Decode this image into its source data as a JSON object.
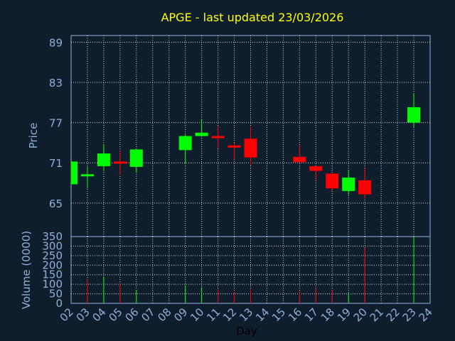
{
  "chart_data": {
    "type": "candlestick",
    "title": "APGE - last updated 23/03/2026",
    "xlabel": "Day",
    "x_ticks": [
      "02",
      "03",
      "04",
      "05",
      "06",
      "07",
      "08",
      "09",
      "10",
      "11",
      "12",
      "13",
      "14",
      "15",
      "16",
      "17",
      "18",
      "19",
      "20",
      "21",
      "22",
      "23",
      "24"
    ],
    "price_panel": {
      "ylabel": "Price",
      "ylim": [
        60,
        90
      ],
      "y_ticks": [
        65,
        71,
        77,
        83,
        89
      ],
      "grid": true,
      "candles": [
        {
          "x": "02",
          "open": 67.8,
          "high": 71.2,
          "low": 67.8,
          "close": 71.2
        },
        {
          "x": "03",
          "open": 69.0,
          "high": 70.4,
          "low": 67.2,
          "close": 69.3
        },
        {
          "x": "04",
          "open": 70.5,
          "high": 73.8,
          "low": 69.8,
          "close": 72.4
        },
        {
          "x": "05",
          "open": 71.2,
          "high": 72.8,
          "low": 69.2,
          "close": 71.0
        },
        {
          "x": "06",
          "open": 70.4,
          "high": 73.0,
          "low": 69.5,
          "close": 73.0
        },
        {
          "x": "09",
          "open": 72.9,
          "high": 75.2,
          "low": 70.9,
          "close": 75.0
        },
        {
          "x": "10",
          "open": 75.0,
          "high": 77.6,
          "low": 74.9,
          "close": 75.5
        },
        {
          "x": "11",
          "open": 75.0,
          "high": 76.5,
          "low": 73.2,
          "close": 74.8
        },
        {
          "x": "12",
          "open": 73.6,
          "high": 74.0,
          "low": 71.5,
          "close": 73.4
        },
        {
          "x": "13",
          "open": 74.6,
          "high": 76.4,
          "low": 70.6,
          "close": 71.8
        },
        {
          "x": "16",
          "open": 71.9,
          "high": 73.6,
          "low": 71.1,
          "close": 71.1
        },
        {
          "x": "17",
          "open": 70.5,
          "high": 70.5,
          "low": 68.4,
          "close": 69.8
        },
        {
          "x": "18",
          "open": 69.4,
          "high": 69.4,
          "low": 66.8,
          "close": 67.2
        },
        {
          "x": "19",
          "open": 66.8,
          "high": 69.8,
          "low": 66.2,
          "close": 68.8
        },
        {
          "x": "20",
          "open": 68.4,
          "high": 70.2,
          "low": 65.7,
          "close": 66.3
        },
        {
          "x": "23",
          "open": 77.0,
          "high": 81.4,
          "low": 76.3,
          "close": 79.3
        }
      ]
    },
    "volume_panel": {
      "ylabel": "Volume (0000)",
      "ylim": [
        0,
        350
      ],
      "y_ticks": [
        0,
        50,
        100,
        150,
        200,
        250,
        300,
        350
      ],
      "grid": true,
      "bars": [
        {
          "x": "03",
          "value": 125,
          "dir": "down"
        },
        {
          "x": "04",
          "value": 140,
          "dir": "up"
        },
        {
          "x": "05",
          "value": 105,
          "dir": "down"
        },
        {
          "x": "06",
          "value": 70,
          "dir": "up"
        },
        {
          "x": "09",
          "value": 95,
          "dir": "up"
        },
        {
          "x": "10",
          "value": 85,
          "dir": "up"
        },
        {
          "x": "11",
          "value": 75,
          "dir": "down"
        },
        {
          "x": "12",
          "value": 60,
          "dir": "down"
        },
        {
          "x": "13",
          "value": 75,
          "dir": "down"
        },
        {
          "x": "16",
          "value": 65,
          "dir": "down"
        },
        {
          "x": "17",
          "value": 80,
          "dir": "down"
        },
        {
          "x": "18",
          "value": 70,
          "dir": "down"
        },
        {
          "x": "19",
          "value": 55,
          "dir": "up"
        },
        {
          "x": "20",
          "value": 290,
          "dir": "down"
        },
        {
          "x": "23",
          "value": 350,
          "dir": "up"
        }
      ]
    },
    "colors": {
      "background": "#0f1e2d",
      "up": "#00ff00",
      "down": "#ff0000",
      "grid": "#ffffff",
      "axis": "#8fb1d9",
      "title": "#ffff00"
    }
  }
}
